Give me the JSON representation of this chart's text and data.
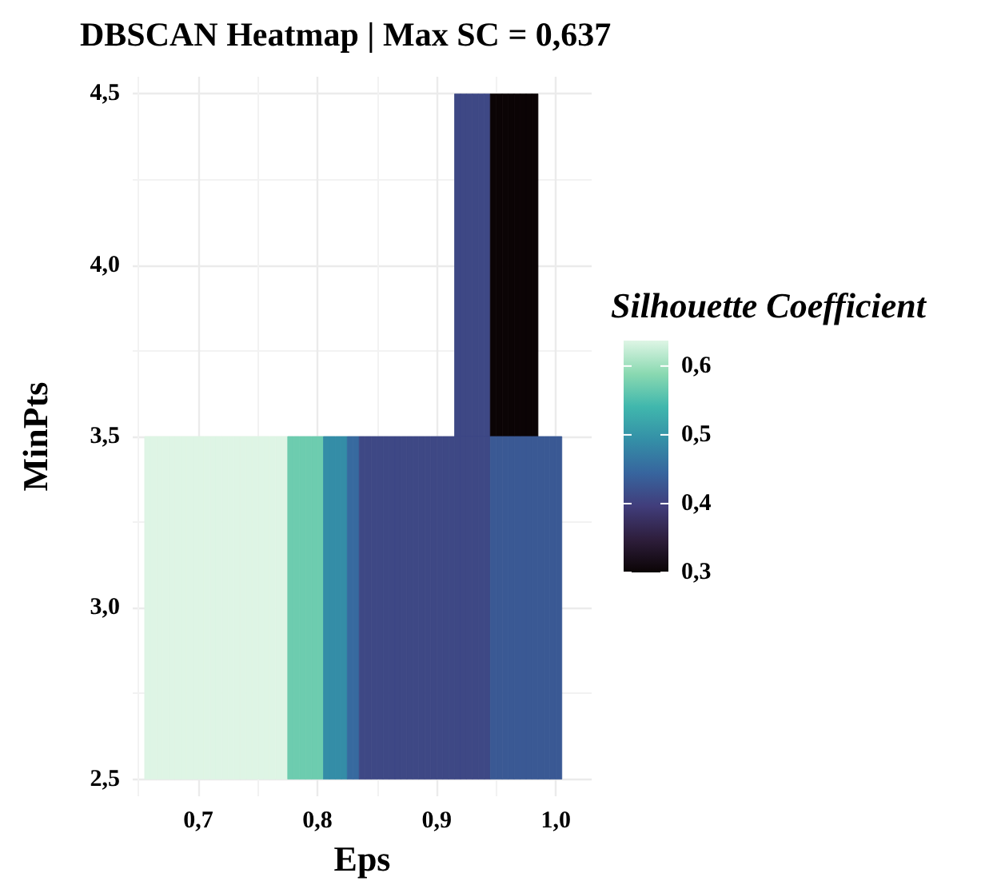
{
  "chart_data": {
    "type": "heatmap",
    "title": "DBSCAN Heatmap | Max SC = 0,637",
    "xlabel": "Eps",
    "ylabel": "MinPts",
    "clabel": "Silhouette Coefficient",
    "x": [
      0.6575,
      0.6625,
      0.6675,
      0.6725,
      0.6775,
      0.6825,
      0.6875,
      0.6925,
      0.6975,
      0.7025,
      0.7075,
      0.7125,
      0.7175,
      0.7225,
      0.7275,
      0.7325,
      0.7375,
      0.7425,
      0.7475,
      0.7525,
      0.7575,
      0.7625,
      0.7675,
      0.7725,
      0.7775,
      0.7825,
      0.7875,
      0.7925,
      0.7975,
      0.8025,
      0.8075,
      0.8125,
      0.8175,
      0.8225,
      0.8275,
      0.8325,
      0.8375,
      0.8425,
      0.8475,
      0.8525,
      0.8575,
      0.8625,
      0.8675,
      0.8725,
      0.8775,
      0.8825,
      0.8875,
      0.8925,
      0.8975,
      0.9025,
      0.9075,
      0.9125,
      0.9175,
      0.9225,
      0.9275,
      0.9325,
      0.9375,
      0.9425,
      0.9475,
      0.9525,
      0.9575,
      0.9625,
      0.9675,
      0.9725,
      0.9775,
      0.9825,
      0.9875,
      0.9925,
      0.9975,
      1.0025
    ],
    "y": [
      4,
      3
    ],
    "cells": [
      [
        null,
        null,
        null,
        null,
        null,
        null,
        null,
        null,
        null,
        null,
        null,
        null,
        null,
        null,
        null,
        null,
        null,
        null,
        null,
        null,
        null,
        null,
        null,
        null,
        null,
        null,
        null,
        null,
        null,
        null,
        null,
        null,
        null,
        null,
        null,
        null,
        null,
        null,
        null,
        null,
        null,
        null,
        null,
        null,
        null,
        null,
        null,
        null,
        null,
        null,
        null,
        null,
        0.41,
        0.41,
        0.41,
        0.41,
        0.41,
        0.41,
        0.3,
        0.3,
        0.3,
        0.3,
        0.3,
        0.3,
        0.3,
        0.3,
        null,
        null,
        null,
        null
      ],
      [
        0.637,
        0.637,
        0.637,
        0.637,
        0.637,
        0.637,
        0.637,
        0.637,
        0.637,
        0.637,
        0.637,
        0.637,
        0.637,
        0.637,
        0.637,
        0.637,
        0.637,
        0.637,
        0.637,
        0.637,
        0.637,
        0.637,
        0.637,
        0.637,
        0.57,
        0.57,
        0.57,
        0.57,
        0.57,
        0.57,
        0.49,
        0.49,
        0.49,
        0.49,
        0.45,
        0.45,
        0.41,
        0.41,
        0.41,
        0.41,
        0.41,
        0.41,
        0.41,
        0.41,
        0.41,
        0.41,
        0.41,
        0.41,
        0.41,
        0.41,
        0.41,
        0.41,
        0.41,
        0.41,
        0.41,
        0.41,
        0.41,
        0.41,
        0.43,
        0.43,
        0.43,
        0.43,
        0.43,
        0.43,
        0.43,
        0.43,
        0.43,
        0.43,
        0.43,
        0.43
      ]
    ],
    "xlim": [
      0.645,
      1.03
    ],
    "xticks": [
      {
        "value": 0.7,
        "label": "0,7"
      },
      {
        "value": 0.8,
        "label": "0,8"
      },
      {
        "value": 0.9,
        "label": "0,9"
      },
      {
        "value": 1.0,
        "label": "1,0"
      }
    ],
    "ylim": [
      2.45,
      4.55
    ],
    "yticks": [
      {
        "value": 2.5,
        "label": "2,5"
      },
      {
        "value": 3,
        "label": "3,0"
      },
      {
        "value": 3.5,
        "label": "3,5"
      },
      {
        "value": 4,
        "label": "4,0"
      },
      {
        "value": 4.5,
        "label": "4,5"
      }
    ],
    "clim": [
      0.3,
      0.637
    ],
    "cticks": [
      {
        "value": 0.3,
        "label": "0,3"
      },
      {
        "value": 0.4,
        "label": "0,4"
      },
      {
        "value": 0.5,
        "label": "0,5"
      },
      {
        "value": 0.6,
        "label": "0,6"
      }
    ],
    "grid": true
  }
}
